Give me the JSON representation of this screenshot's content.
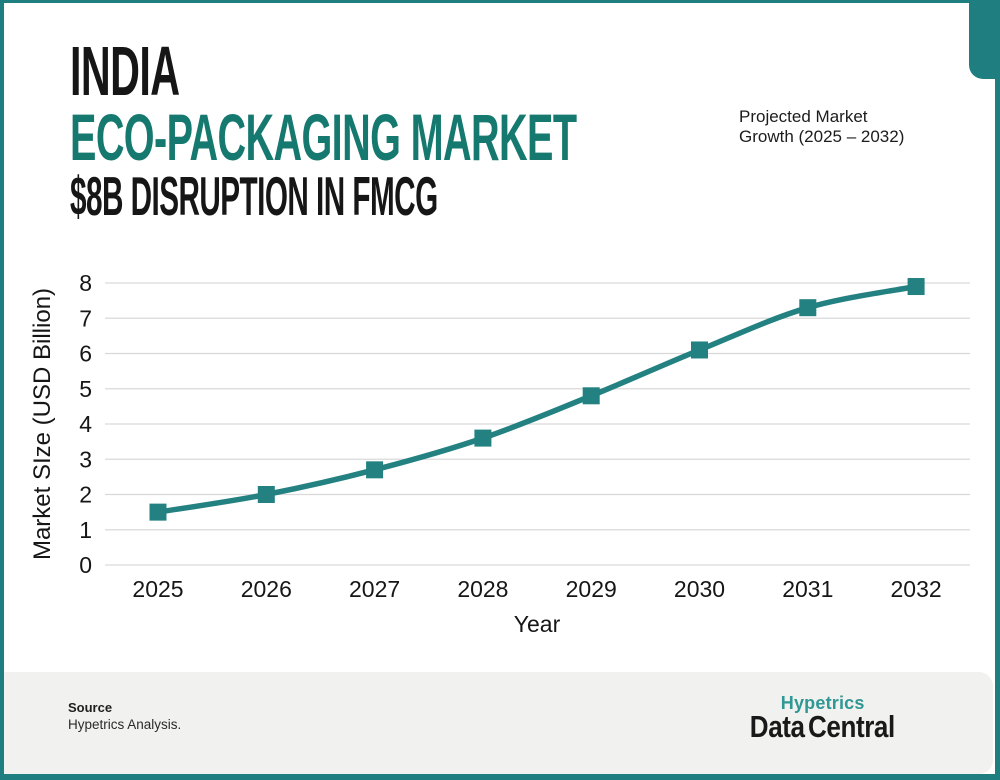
{
  "page": {
    "background": "#ffffff",
    "accent": "#1f7e7f",
    "footer_background": "#f1f2ef",
    "text_color": "#161616"
  },
  "header": {
    "title_line1": "INDIA",
    "title_line2": "ECO-PACKAGING MARKET",
    "title_line3": "$8B DISRUPTION IN FMCG",
    "title_line2_color": "#16796f",
    "annotation_line1": "Projected Market",
    "annotation_line2": "Growth (2025 – 2032)"
  },
  "chart_data": {
    "type": "line",
    "categories": [
      "2025",
      "2026",
      "2027",
      "2028",
      "2029",
      "2030",
      "2031",
      "2032"
    ],
    "values": [
      1.5,
      2.0,
      2.7,
      3.6,
      4.8,
      6.1,
      7.3,
      7.9
    ],
    "title": "India Eco-Packaging Market, Projected Market Growth (2025 - 2032)",
    "xlabel": "Year",
    "ylabel": "Market SIze (USD Billion)",
    "ylim": [
      0,
      8
    ],
    "yticks": [
      0,
      1,
      2,
      3,
      4,
      5,
      6,
      7,
      8
    ],
    "grid": true,
    "legend_position": "none",
    "line_color": "#238181",
    "marker": "square",
    "gridline_color": "#d9d9d9"
  },
  "footer": {
    "source_label": "Source",
    "source_text": "Hypetrics Analysis.",
    "logo_line1": "Hypetrics",
    "logo_line2": "Data Central",
    "logo_color": "#2f9794"
  }
}
